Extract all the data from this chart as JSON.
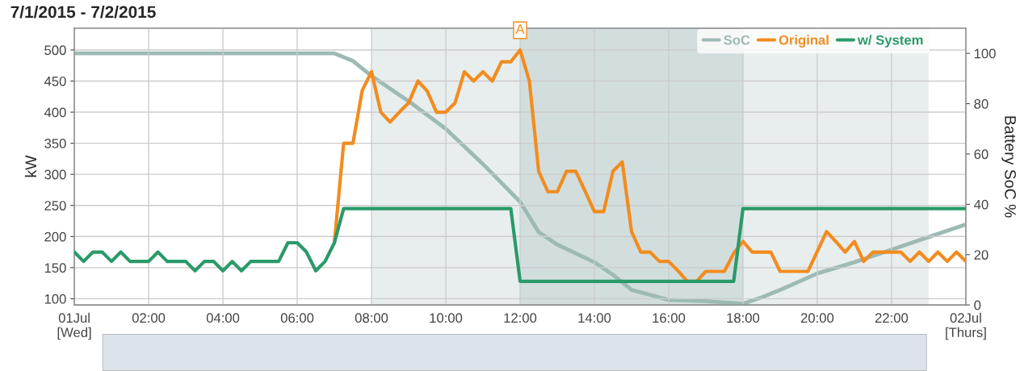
{
  "chart_data": {
    "type": "line",
    "title": "7/1/2015 - 7/2/2015",
    "ylabel": "kW",
    "y2label": "Battery SoC %",
    "xlim": [
      0,
      24
    ],
    "ylim": [
      90,
      535
    ],
    "y2lim": [
      0,
      110
    ],
    "xticks": [
      {
        "value": 0,
        "label": "01Jul\n[Wed]"
      },
      {
        "value": 2,
        "label": "02:00"
      },
      {
        "value": 4,
        "label": "04:00"
      },
      {
        "value": 6,
        "label": "06:00"
      },
      {
        "value": 8,
        "label": "08:00"
      },
      {
        "value": 10,
        "label": "10:00"
      },
      {
        "value": 12,
        "label": "12:00"
      },
      {
        "value": 14,
        "label": "14:00"
      },
      {
        "value": 16,
        "label": "16:00"
      },
      {
        "value": 18,
        "label": "18:00"
      },
      {
        "value": 20,
        "label": "20:00"
      },
      {
        "value": 22,
        "label": "22:00"
      },
      {
        "value": 24,
        "label": "02Jul\n[Thurs]"
      }
    ],
    "yticks": [
      100,
      150,
      200,
      250,
      300,
      350,
      400,
      450,
      500
    ],
    "y2ticks": [
      0,
      20,
      40,
      60,
      80,
      100
    ],
    "grid": true,
    "legend": "top right",
    "marker": "none",
    "line_style": "solid",
    "bands": [
      {
        "axis": "x",
        "from": 8,
        "to": 23,
        "color": "#e8eeee"
      },
      {
        "axis": "x",
        "from": 12,
        "to": 18,
        "color": "#d2dede"
      }
    ],
    "annotations": [
      {
        "text": "A",
        "x": 12,
        "y": 500
      }
    ],
    "series": [
      {
        "name": "SoC",
        "color": "#9dbab5",
        "axis": "y2",
        "x": [
          0,
          7,
          7.5,
          8,
          9,
          10,
          11,
          12,
          12.5,
          13,
          14,
          14.5,
          15,
          15.5,
          16,
          17,
          18,
          18.5,
          19,
          20,
          21,
          22,
          23,
          24
        ],
        "values": [
          100,
          100,
          97,
          91,
          81,
          70,
          56,
          41,
          29,
          24,
          17,
          12,
          6,
          4,
          2,
          1.5,
          0.5,
          3,
          6,
          12.5,
          17,
          22,
          27,
          32
        ]
      },
      {
        "name": "Original",
        "color": "#f28c1e",
        "x": [
          7,
          7.25,
          7.5,
          7.75,
          8,
          8.25,
          8.5,
          8.75,
          9,
          9.25,
          9.5,
          9.75,
          10,
          10.25,
          10.5,
          10.75,
          11,
          11.25,
          11.5,
          11.75,
          12,
          12.25,
          12.5,
          12.75,
          13,
          13.25,
          13.5,
          13.75,
          14,
          14.25,
          14.5,
          14.75,
          15,
          15.25,
          15.5,
          15.75,
          16,
          16.25,
          16.5,
          16.75,
          17,
          17.25,
          17.5,
          17.75,
          18,
          18.25,
          18.5,
          18.75,
          19,
          19.25,
          19.5,
          19.75,
          20.25,
          20.5,
          20.75,
          21,
          21.25,
          21.5,
          21.75,
          22,
          22.25,
          22.5,
          22.75,
          23,
          23.25,
          23.5,
          23.75,
          24
        ],
        "values": [
          190,
          350,
          350,
          435,
          465,
          400,
          384,
          400,
          415,
          450,
          434,
          400,
          400,
          415,
          465,
          450,
          465,
          450,
          481,
          481,
          500,
          450,
          305,
          272,
          272,
          305,
          305,
          273,
          240,
          240,
          305,
          320,
          208,
          175,
          175,
          160,
          160,
          145,
          128,
          128,
          144,
          144,
          144,
          173,
          192,
          175,
          175,
          175,
          144,
          144,
          144,
          144,
          208,
          192,
          175,
          192,
          160,
          175,
          175,
          175,
          175,
          160,
          175,
          160,
          175,
          160,
          175,
          160
        ]
      },
      {
        "name": "w/ System",
        "color": "#2a9a6a",
        "x": [
          0,
          0.25,
          0.5,
          0.75,
          1,
          1.25,
          1.5,
          1.75,
          2,
          2.25,
          2.5,
          2.75,
          3,
          3.25,
          3.5,
          3.75,
          4,
          4.25,
          4.5,
          4.75,
          5,
          5.25,
          5.5,
          5.75,
          6,
          6.25,
          6.5,
          6.75,
          7,
          7.25,
          11.75,
          12,
          17.75,
          18,
          24
        ],
        "values": [
          175,
          160,
          175,
          175,
          160,
          175,
          160,
          160,
          160,
          175,
          160,
          160,
          160,
          145,
          160,
          160,
          145,
          160,
          145,
          160,
          160,
          160,
          160,
          190,
          190,
          175,
          145,
          160,
          190,
          245,
          245,
          128,
          128,
          245,
          245
        ]
      }
    ]
  }
}
